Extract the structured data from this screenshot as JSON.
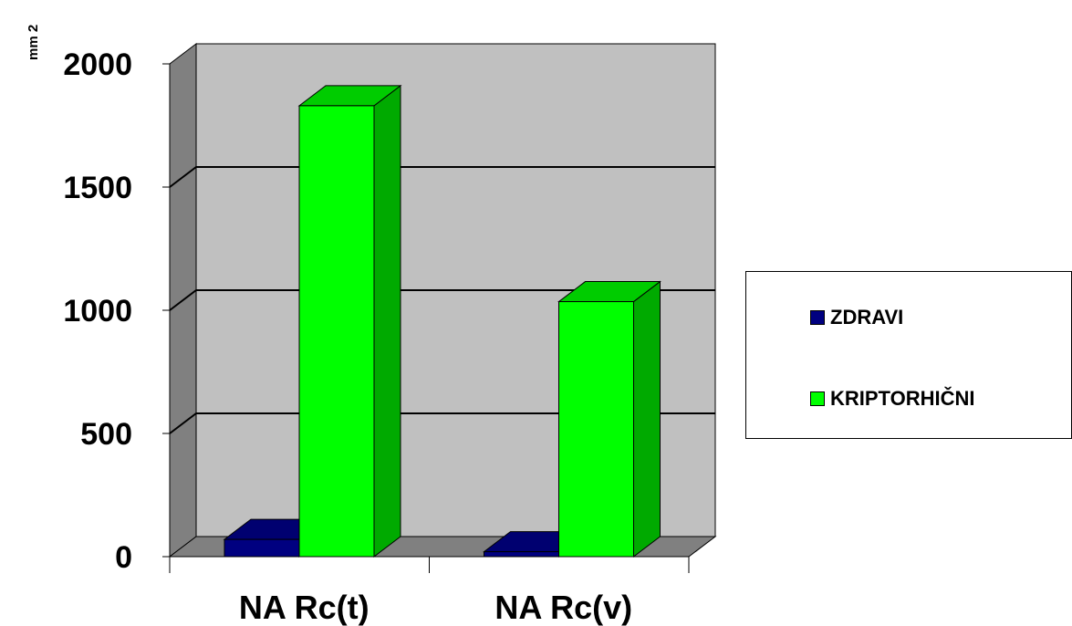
{
  "chart_data": {
    "type": "bar",
    "style": "3d-clustered-column",
    "ylabel": "mm 2",
    "xlabel": "",
    "title": "",
    "categories": [
      "NA Rc(t)",
      "NA Rc(v)"
    ],
    "ylim": [
      0,
      2000
    ],
    "yticks": [
      0,
      500,
      1000,
      1500,
      2000
    ],
    "grid": true,
    "legend_position": "right",
    "series": [
      {
        "name": "ZDRAVI",
        "values": [
          70,
          20
        ],
        "color": "#000080",
        "color_side": "#000060",
        "color_top": "#000070"
      },
      {
        "name": "KRIPTORHIČNI",
        "values": [
          1830,
          1035
        ],
        "color": "#00FF00",
        "color_side": "#00AA00",
        "color_top": "#00CC00"
      }
    ]
  },
  "legend": {
    "items": [
      {
        "label": "ZDRAVI",
        "color": "#000080"
      },
      {
        "label": "KRIPTORHIČNI",
        "color": "#00FF00"
      }
    ]
  },
  "colors": {
    "back_wall": "#C0C0C0",
    "side_wall": "#808080",
    "floor": "#808080",
    "grid": "#000000"
  }
}
